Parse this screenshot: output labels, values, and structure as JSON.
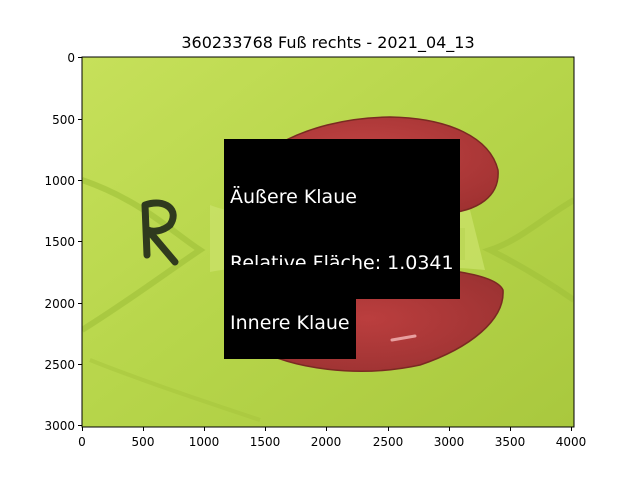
{
  "title": "360233768 Fuß rechts - 2021_04_13",
  "annotations": {
    "outer": {
      "line1": "Äußere Klaue",
      "line2": "Relative Fläche: 1.0341"
    },
    "inner": {
      "line1": "Innere Klaue"
    }
  },
  "x_ticks": [
    "0",
    "500",
    "1000",
    "1500",
    "2000",
    "2500",
    "3000",
    "3500",
    "4000"
  ],
  "y_ticks": [
    "0",
    "500",
    "1000",
    "1500",
    "2000",
    "2500",
    "3000"
  ],
  "colors": {
    "background": "#b9d84a",
    "claw_mask": "#b53a3a",
    "label_bg": "#000000"
  }
}
